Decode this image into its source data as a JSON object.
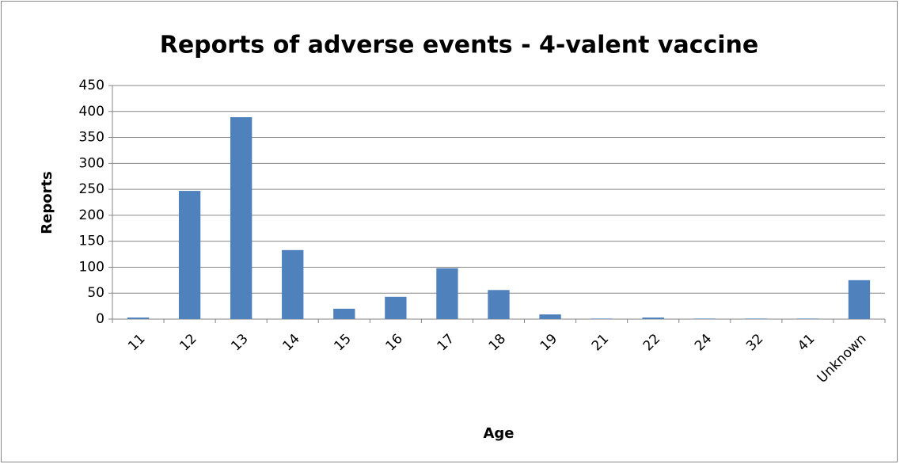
{
  "chart_data": {
    "type": "bar",
    "title": "Reports of adverse events - 4-valent vaccine",
    "x_label": "Age",
    "y_label": "Reports",
    "categories": [
      "11",
      "12",
      "13",
      "14",
      "15",
      "16",
      "17",
      "18",
      "19",
      "21",
      "22",
      "24",
      "32",
      "41",
      "Unknown"
    ],
    "values": [
      3,
      247,
      389,
      133,
      20,
      43,
      98,
      56,
      9,
      1,
      3,
      1,
      1,
      1,
      75
    ],
    "color": "#4f81bd",
    "ylim": [
      0,
      450
    ],
    "yticks": [
      0,
      50,
      100,
      150,
      200,
      250,
      300,
      350,
      400,
      450
    ],
    "grid": true
  }
}
